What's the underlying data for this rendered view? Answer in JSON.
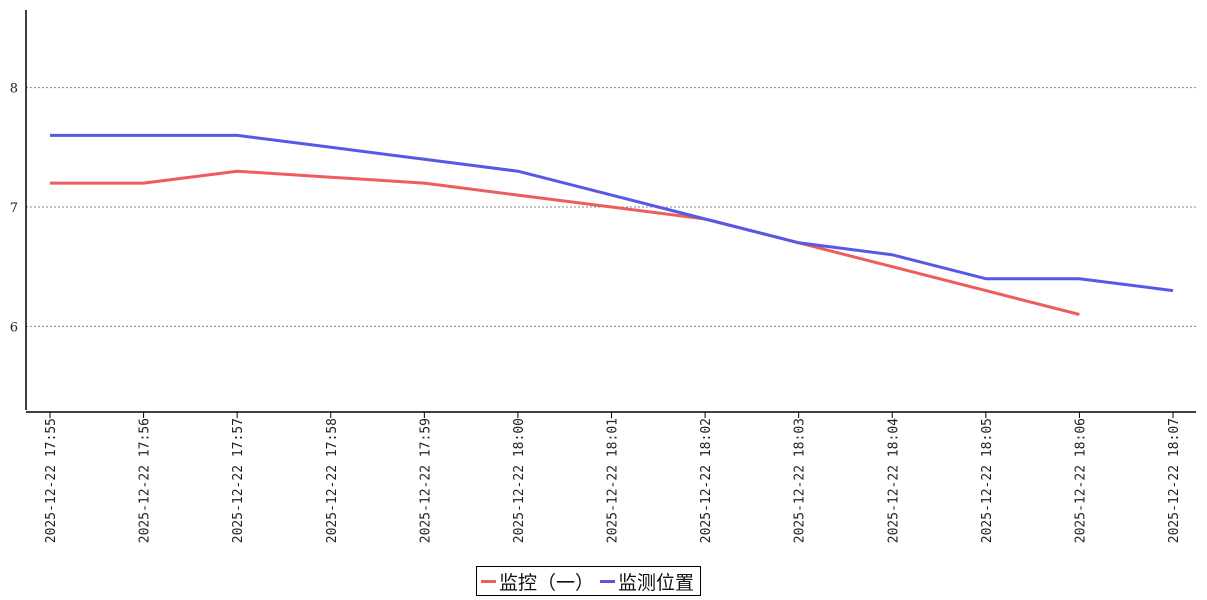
{
  "chart_data": {
    "type": "line",
    "x": [
      "2025-12-22 17:55",
      "2025-12-22 17:56",
      "2025-12-22 17:57",
      "2025-12-22 17:58",
      "2025-12-22 17:59",
      "2025-12-22 18:00",
      "2025-12-22 18:01",
      "2025-12-22 18:02",
      "2025-12-22 18:03",
      "2025-12-22 18:04",
      "2025-12-22 18:05",
      "2025-12-22 18:06",
      "2025-12-22 18:07"
    ],
    "yticks": [
      "6",
      "7",
      "8"
    ],
    "ylim": [
      5.3,
      8.65
    ],
    "grid": true,
    "legend_position": "bottom-center",
    "series": [
      {
        "name": "监控（一）",
        "color": "#ee5c5c",
        "values": [
          7.2,
          7.2,
          7.3,
          7.25,
          7.2,
          7.1,
          7.0,
          6.9,
          6.7,
          6.5,
          6.3,
          6.1,
          null
        ]
      },
      {
        "name": "监测位置",
        "color": "#5858e6",
        "values": [
          7.6,
          7.6,
          7.6,
          7.5,
          7.4,
          7.3,
          7.1,
          6.9,
          6.7,
          6.6,
          6.4,
          6.4,
          6.3
        ]
      }
    ]
  }
}
